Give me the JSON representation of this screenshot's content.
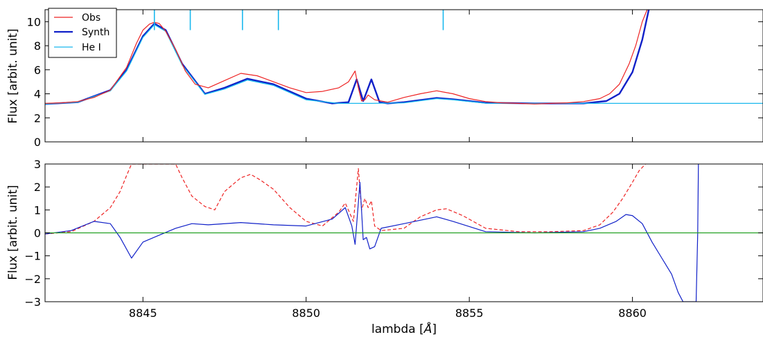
{
  "chart_data": [
    {
      "type": "line",
      "panel": "top",
      "ylabel": "Flux [arbit. unit]",
      "xlim": [
        8842,
        8864
      ],
      "ylim": [
        0,
        11
      ],
      "yticks": [
        0,
        2,
        4,
        6,
        8,
        10
      ],
      "yticklabels": [
        "0",
        "2",
        "4",
        "6",
        "8",
        "10"
      ],
      "grid": false,
      "legend": "top-left",
      "colors": {
        "obs": "#ee2222",
        "synth": "#1020c8",
        "he": "#18b8ee"
      },
      "series": [
        {
          "name": "Obs",
          "x": [
            8842.0,
            8842.5,
            8843.0,
            8843.5,
            8844.0,
            8844.5,
            8844.8,
            8845.0,
            8845.2,
            8845.35,
            8845.5,
            8845.7,
            8846.0,
            8846.3,
            8846.6,
            8847.0,
            8847.5,
            8848.0,
            8848.5,
            8849.0,
            8849.5,
            8850.0,
            8850.5,
            8851.0,
            8851.3,
            8851.5,
            8851.6,
            8851.7,
            8851.8,
            8851.9,
            8852.1,
            8852.5,
            8853.0,
            8853.5,
            8854.0,
            8854.5,
            8855.0,
            8855.5,
            8856.0,
            8856.5,
            8857.0,
            8857.5,
            8858.0,
            8858.5,
            8859.0,
            8859.3,
            8859.6,
            8859.9,
            8860.1,
            8860.3,
            8860.45
          ],
          "y": [
            3.2,
            3.25,
            3.35,
            3.7,
            4.3,
            6.2,
            8.2,
            9.3,
            9.8,
            9.95,
            9.85,
            9.2,
            7.7,
            5.9,
            4.8,
            4.5,
            5.1,
            5.7,
            5.5,
            5.0,
            4.5,
            4.1,
            4.2,
            4.5,
            5.0,
            5.9,
            4.5,
            3.4,
            3.5,
            3.9,
            3.5,
            3.3,
            3.7,
            4.0,
            4.25,
            4.0,
            3.6,
            3.35,
            3.25,
            3.2,
            3.15,
            3.2,
            3.25,
            3.35,
            3.6,
            4.0,
            4.8,
            6.5,
            8.0,
            10.0,
            11.0
          ]
        },
        {
          "name": "Synth",
          "x": [
            8842.0,
            8843.0,
            8844.0,
            8844.5,
            8845.0,
            8845.35,
            8845.7,
            8846.2,
            8846.9,
            8847.5,
            8848.2,
            8849.0,
            8850.0,
            8850.8,
            8851.3,
            8851.55,
            8851.75,
            8852.0,
            8852.25,
            8852.5,
            8853.0,
            8854.0,
            8854.5,
            8855.5,
            8857.0,
            8858.5,
            8859.2,
            8859.6,
            8860.0,
            8860.3,
            8860.5
          ],
          "y": [
            3.15,
            3.3,
            4.3,
            6.0,
            8.8,
            9.85,
            9.3,
            6.5,
            4.0,
            4.5,
            5.25,
            4.8,
            3.6,
            3.2,
            3.3,
            5.2,
            3.4,
            5.2,
            3.3,
            3.2,
            3.3,
            3.65,
            3.55,
            3.25,
            3.2,
            3.2,
            3.4,
            4.0,
            5.8,
            8.5,
            11.0
          ]
        },
        {
          "name": "He I",
          "x": [
            8842.0,
            8843.0,
            8844.0,
            8844.5,
            8845.0,
            8845.35,
            8845.7,
            8846.2,
            8846.9,
            8847.5,
            8848.2,
            8849.0,
            8850.0,
            8851.0,
            8852.0,
            8853.0,
            8854.0,
            8854.5,
            8855.5,
            8857.0,
            8860.0,
            8864.0
          ],
          "y": [
            3.15,
            3.3,
            4.25,
            5.9,
            8.7,
            9.75,
            9.2,
            6.4,
            3.95,
            4.4,
            5.15,
            4.7,
            3.5,
            3.2,
            3.2,
            3.25,
            3.6,
            3.5,
            3.22,
            3.2,
            3.2,
            3.2
          ]
        }
      ],
      "line_markers": {
        "name": "He I",
        "x": [
          8845.35,
          8846.45,
          8848.05,
          8849.15,
          8854.2
        ],
        "ymin": 9.3,
        "ymax": 11.0
      }
    },
    {
      "type": "line",
      "panel": "bottom",
      "xlabel": "lambda [$\\AA$]",
      "xlabel_text": "lambda [",
      "xlabel_symbol": "Å",
      "xlabel_suffix": "]",
      "ylabel": "Flux [arbit. unit]",
      "xlim": [
        8842,
        8864
      ],
      "ylim": [
        -3,
        3
      ],
      "xticks": [
        8845,
        8850,
        8855,
        8860
      ],
      "xticklabels": [
        "8845",
        "8850",
        "8855",
        "8860"
      ],
      "yticks": [
        -3,
        -2,
        -1,
        0,
        1,
        2,
        3
      ],
      "yticklabels": [
        "−3",
        "−2",
        "−1",
        "0",
        "1",
        "2",
        "3"
      ],
      "grid": false,
      "colors": {
        "dashed": "#ee2222",
        "residual": "#1020c8",
        "zero": "#22a022"
      },
      "series": [
        {
          "style": "dashed",
          "x": [
            8842.0,
            8842.8,
            8843.5,
            8844.0,
            8844.3,
            8844.5,
            8844.65,
            8846.0,
            8846.2,
            8846.5,
            8846.9,
            8847.2,
            8847.5,
            8848.0,
            8848.3,
            8848.6,
            8849.0,
            8849.5,
            8850.0,
            8850.5,
            8851.0,
            8851.2,
            8851.45,
            8851.6,
            8851.7,
            8851.8,
            8851.9,
            8852.0,
            8852.1,
            8852.3,
            8853.0,
            8853.5,
            8854.0,
            8854.3,
            8854.8,
            8855.5,
            8856.5,
            8857.5,
            8858.5,
            8859.0,
            8859.4,
            8859.7,
            8860.0,
            8860.2,
            8860.4
          ],
          "y": [
            -0.05,
            0.05,
            0.5,
            1.1,
            1.8,
            2.5,
            3.0,
            3.0,
            2.4,
            1.6,
            1.15,
            1.0,
            1.8,
            2.4,
            2.55,
            2.3,
            1.9,
            1.1,
            0.5,
            0.3,
            0.9,
            1.3,
            0.5,
            2.8,
            1.0,
            1.5,
            1.1,
            1.4,
            0.3,
            0.1,
            0.2,
            0.7,
            1.0,
            1.05,
            0.75,
            0.2,
            0.05,
            0.05,
            0.1,
            0.35,
            0.9,
            1.5,
            2.2,
            2.7,
            3.0
          ]
        },
        {
          "style": "solid",
          "x": [
            8842.0,
            8842.8,
            8843.5,
            8844.0,
            8844.3,
            8844.65,
            8845.0,
            8845.5,
            8846.0,
            8846.5,
            8847.0,
            8848.0,
            8849.0,
            8850.0,
            8850.8,
            8851.2,
            8851.4,
            8851.5,
            8851.65,
            8851.75,
            8851.85,
            8851.95,
            8852.1,
            8852.3,
            8853.0,
            8854.0,
            8854.5,
            8855.5,
            8857.0,
            8858.5,
            8859.0,
            8859.5,
            8859.8,
            8860.0,
            8860.3,
            8860.6,
            8860.9,
            8861.2,
            8861.4,
            8861.55,
            8861.95,
            8862.0,
            8862.02
          ],
          "y": [
            -0.05,
            0.1,
            0.5,
            0.4,
            -0.2,
            -1.1,
            -0.4,
            -0.1,
            0.2,
            0.4,
            0.35,
            0.45,
            0.35,
            0.3,
            0.6,
            1.1,
            0.3,
            -0.5,
            2.2,
            -0.3,
            -0.2,
            -0.7,
            -0.6,
            0.2,
            0.4,
            0.7,
            0.5,
            0.05,
            0.0,
            0.05,
            0.2,
            0.5,
            0.8,
            0.75,
            0.4,
            -0.4,
            -1.1,
            -1.8,
            -2.6,
            -3.0,
            -3.0,
            0.0,
            3.0
          ]
        },
        {
          "style": "zero",
          "x": [
            8842.0,
            8864.0
          ],
          "y": [
            0.0,
            0.0
          ]
        }
      ]
    }
  ],
  "legend": {
    "entries": [
      {
        "label": "Obs",
        "key": "obs"
      },
      {
        "label": "Synth",
        "key": "synth"
      },
      {
        "label": "He I",
        "key": "he"
      }
    ]
  }
}
